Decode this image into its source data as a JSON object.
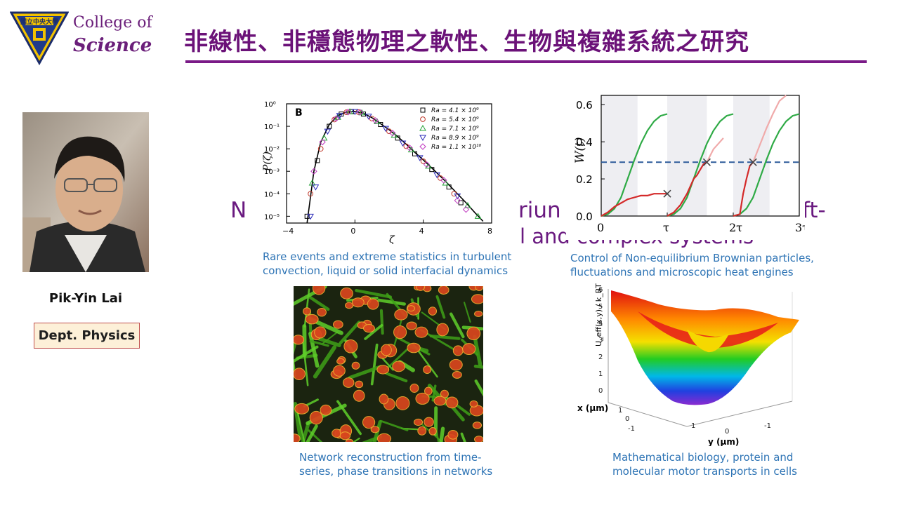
{
  "header": {
    "logo": {
      "line1": "College of",
      "line2": "Science",
      "seal_text": "國立中央大學"
    },
    "title": "非線性、非穩態物理之軟性、生物與複雜系統之研究"
  },
  "person": {
    "name": "Pik-Yin Lai",
    "dept": "Dept. Physics"
  },
  "background_text": {
    "line1_frag_a": "N",
    "line1_frag_b": "riun",
    "line1_frag_c": "ft-",
    "line2_frag": "l and complex systems"
  },
  "figures": {
    "turbulence": {
      "panel_label": "B",
      "ylabel": "P(ζ)",
      "xlabel": "ζ",
      "caption": [
        "Rare events and extreme statistics in turbulent",
        "convection, liquid or solid interfacial dynamics"
      ],
      "legend": [
        "Ra = 4.1 × 10⁹",
        "Ra = 5.4 × 10⁹",
        "Ra = 7.1 × 10⁹",
        "Ra = 8.9 × 10⁹",
        "Ra = 1.1 × 10¹⁰"
      ],
      "legend_colors": [
        "#000000",
        "#c0392b",
        "#27a33a",
        "#2a2ab8",
        "#c03ac0"
      ]
    },
    "brownian": {
      "ylabel": "W(t)",
      "caption": [
        "Control of Non-equilibrium Brownian particles,",
        "fluctuations and microscopic heat engines"
      ]
    },
    "network": {
      "caption": [
        "Network reconstruction from time-",
        "series, phase transitions in networks"
      ]
    },
    "bio": {
      "zlabel": "U_eff(x,y) / k_BT",
      "xlabel": "x (μm)",
      "ylabel": "y (μm)",
      "caption": [
        "Mathematical biology, protein and",
        "molecular motor transports in cells"
      ]
    }
  },
  "chart_data": [
    {
      "type": "scatter",
      "title": "",
      "xlabel": "ζ",
      "ylabel": "P(ζ)",
      "xlim": [
        -4,
        8
      ],
      "yscale": "log",
      "ylim": [
        5e-06,
        1
      ],
      "x_ticks": [
        "−4",
        "0",
        "4",
        "8"
      ],
      "y_ticks": [
        "10⁰",
        "10⁻¹",
        "10⁻²",
        "10⁻³",
        "10⁻⁴",
        "10⁻⁵"
      ],
      "legend_position": "top-right",
      "series": [
        {
          "name": "Ra = 4.1 × 10⁹",
          "points": [
            [
              -2.8,
              1e-05
            ],
            [
              -2.2,
              0.003
            ],
            [
              -1.5,
              0.1
            ],
            [
              -0.8,
              0.35
            ],
            [
              -0.2,
              0.45
            ],
            [
              0.5,
              0.35
            ],
            [
              1.5,
              0.12
            ],
            [
              2.5,
              0.03
            ],
            [
              3.5,
              0.006
            ],
            [
              4.5,
              0.0012
            ],
            [
              5.5,
              0.0002
            ],
            [
              6.2,
              4e-05
            ]
          ]
        },
        {
          "name": "Ra = 5.4 × 10⁹",
          "points": [
            [
              -2.6,
              0.0001
            ],
            [
              -2.0,
              0.01
            ],
            [
              -1.2,
              0.2
            ],
            [
              -0.5,
              0.42
            ],
            [
              0.2,
              0.43
            ],
            [
              1.0,
              0.22
            ],
            [
              2.0,
              0.06
            ],
            [
              3.0,
              0.013
            ],
            [
              4.0,
              0.0028
            ],
            [
              5.0,
              0.0005
            ],
            [
              5.8,
              0.0001
            ]
          ]
        },
        {
          "name": "Ra = 7.1 × 10⁹",
          "points": [
            [
              -2.5,
              0.0003
            ],
            [
              -1.8,
              0.03
            ],
            [
              -1.0,
              0.25
            ],
            [
              -0.3,
              0.44
            ],
            [
              0.4,
              0.4
            ],
            [
              1.3,
              0.16
            ],
            [
              2.3,
              0.04
            ],
            [
              3.3,
              0.009
            ],
            [
              4.3,
              0.0017
            ],
            [
              5.3,
              0.0003
            ],
            [
              6.6,
              3e-05
            ],
            [
              7.2,
              1e-05
            ]
          ]
        },
        {
          "name": "Ra = 8.9 × 10⁹",
          "points": [
            [
              -2.6,
              1e-05
            ],
            [
              -2.3,
              0.0002
            ],
            [
              -1.6,
              0.06
            ],
            [
              -0.9,
              0.3
            ],
            [
              0.0,
              0.45
            ],
            [
              0.8,
              0.28
            ],
            [
              1.8,
              0.08
            ],
            [
              2.8,
              0.018
            ],
            [
              3.8,
              0.004
            ],
            [
              4.8,
              0.0007
            ],
            [
              6.0,
              8e-05
            ]
          ]
        },
        {
          "name": "Ra = 1.1 × 10¹⁰",
          "points": [
            [
              -2.4,
              0.001
            ],
            [
              -1.9,
              0.02
            ],
            [
              -1.1,
              0.22
            ],
            [
              -0.4,
              0.43
            ],
            [
              0.3,
              0.42
            ],
            [
              1.2,
              0.18
            ],
            [
              2.2,
              0.05
            ],
            [
              3.2,
              0.011
            ],
            [
              4.2,
              0.002
            ],
            [
              5.2,
              0.0004
            ],
            [
              6.0,
              5e-05
            ],
            [
              6.5,
              2e-05
            ]
          ]
        }
      ],
      "fit_curve": [
        [
          -2.8,
          5e-06
        ],
        [
          -2.4,
          0.001
        ],
        [
          -2.0,
          0.02
        ],
        [
          -1.5,
          0.12
        ],
        [
          -1.0,
          0.3
        ],
        [
          -0.5,
          0.43
        ],
        [
          0.0,
          0.46
        ],
        [
          0.5,
          0.38
        ],
        [
          1.0,
          0.24
        ],
        [
          1.5,
          0.13
        ],
        [
          2.0,
          0.07
        ],
        [
          2.5,
          0.035
        ],
        [
          3.0,
          0.016
        ],
        [
          3.5,
          0.007
        ],
        [
          4.0,
          0.0032
        ],
        [
          4.5,
          0.0014
        ],
        [
          5.0,
          0.0006
        ],
        [
          5.5,
          0.00025
        ],
        [
          6.0,
          0.0001
        ],
        [
          6.5,
          4e-05
        ],
        [
          7.0,
          1.5e-05
        ],
        [
          7.5,
          6e-06
        ]
      ]
    },
    {
      "type": "line",
      "title": "",
      "ylabel": "W(t)",
      "xlim": [
        0,
        3
      ],
      "ylim": [
        0,
        0.65
      ],
      "x_ticks": [
        {
          "v": 0,
          "label": "0"
        },
        {
          "v": 1,
          "label": "τ"
        },
        {
          "v": 2,
          "label": "2τ"
        },
        {
          "v": 3,
          "label": "3τ"
        }
      ],
      "y_ticks": [
        "0.0",
        "0.2",
        "0.4",
        "0.6"
      ],
      "shaded_intervals": [
        [
          0,
          0.55
        ],
        [
          1.0,
          1.6
        ],
        [
          2.0,
          2.55
        ]
      ],
      "threshold": 0.29,
      "series": [
        {
          "name": "",
          "color": "#2eaa45",
          "points": [
            [
              0.0,
              0
            ],
            [
              0.1,
              0.01
            ],
            [
              0.2,
              0.04
            ],
            [
              0.3,
              0.1
            ],
            [
              0.4,
              0.2
            ],
            [
              0.5,
              0.3
            ],
            [
              0.6,
              0.39
            ],
            [
              0.7,
              0.46
            ],
            [
              0.8,
              0.51
            ],
            [
              0.9,
              0.54
            ],
            [
              1.0,
              0.55
            ]
          ]
        },
        {
          "name": "",
          "color": "#2eaa45",
          "points": [
            [
              1.0,
              0
            ],
            [
              1.1,
              0.01
            ],
            [
              1.2,
              0.04
            ],
            [
              1.3,
              0.1
            ],
            [
              1.4,
              0.2
            ],
            [
              1.5,
              0.3
            ],
            [
              1.6,
              0.39
            ],
            [
              1.7,
              0.46
            ],
            [
              1.8,
              0.51
            ],
            [
              1.9,
              0.54
            ],
            [
              2.0,
              0.55
            ]
          ]
        },
        {
          "name": "",
          "color": "#2eaa45",
          "points": [
            [
              2.0,
              0
            ],
            [
              2.1,
              0.01
            ],
            [
              2.2,
              0.04
            ],
            [
              2.3,
              0.1
            ],
            [
              2.4,
              0.2
            ],
            [
              2.5,
              0.3
            ],
            [
              2.6,
              0.39
            ],
            [
              2.7,
              0.46
            ],
            [
              2.8,
              0.51
            ],
            [
              2.9,
              0.54
            ],
            [
              3.0,
              0.55
            ]
          ]
        },
        {
          "name": "",
          "color": "#d42a2a",
          "points": [
            [
              0.0,
              0.0
            ],
            [
              0.1,
              0.02
            ],
            [
              0.2,
              0.05
            ],
            [
              0.3,
              0.07
            ],
            [
              0.4,
              0.09
            ],
            [
              0.5,
              0.1
            ],
            [
              0.6,
              0.11
            ],
            [
              0.7,
              0.11
            ],
            [
              0.8,
              0.12
            ],
            [
              0.9,
              0.12
            ],
            [
              1.0,
              0.12
            ]
          ]
        },
        {
          "name": "",
          "color": "#d42a2a",
          "points": [
            [
              1.0,
              0.0
            ],
            [
              1.1,
              0.02
            ],
            [
              1.2,
              0.06
            ],
            [
              1.3,
              0.12
            ],
            [
              1.4,
              0.2
            ],
            [
              1.45,
              0.22
            ],
            [
              1.5,
              0.25
            ],
            [
              1.55,
              0.28
            ],
            [
              1.6,
              0.29
            ]
          ]
        },
        {
          "name": "",
          "color": "#f0aaaa",
          "points": [
            [
              1.6,
              0.29
            ],
            [
              1.7,
              0.36
            ],
            [
              1.8,
              0.4
            ],
            [
              1.85,
              0.42
            ]
          ]
        },
        {
          "name": "",
          "color": "#d42a2a",
          "points": [
            [
              2.0,
              0.0
            ],
            [
              2.1,
              0.01
            ],
            [
              2.15,
              0.12
            ],
            [
              2.2,
              0.2
            ],
            [
              2.25,
              0.27
            ],
            [
              2.3,
              0.29
            ]
          ]
        },
        {
          "name": "",
          "color": "#f0aaaa",
          "points": [
            [
              2.3,
              0.29
            ],
            [
              2.4,
              0.38
            ],
            [
              2.5,
              0.47
            ],
            [
              2.6,
              0.55
            ],
            [
              2.7,
              0.62
            ],
            [
              2.8,
              0.66
            ]
          ]
        }
      ],
      "crosses": [
        [
          1.0,
          0.12
        ],
        [
          1.6,
          0.29
        ],
        [
          2.3,
          0.29
        ]
      ]
    }
  ]
}
